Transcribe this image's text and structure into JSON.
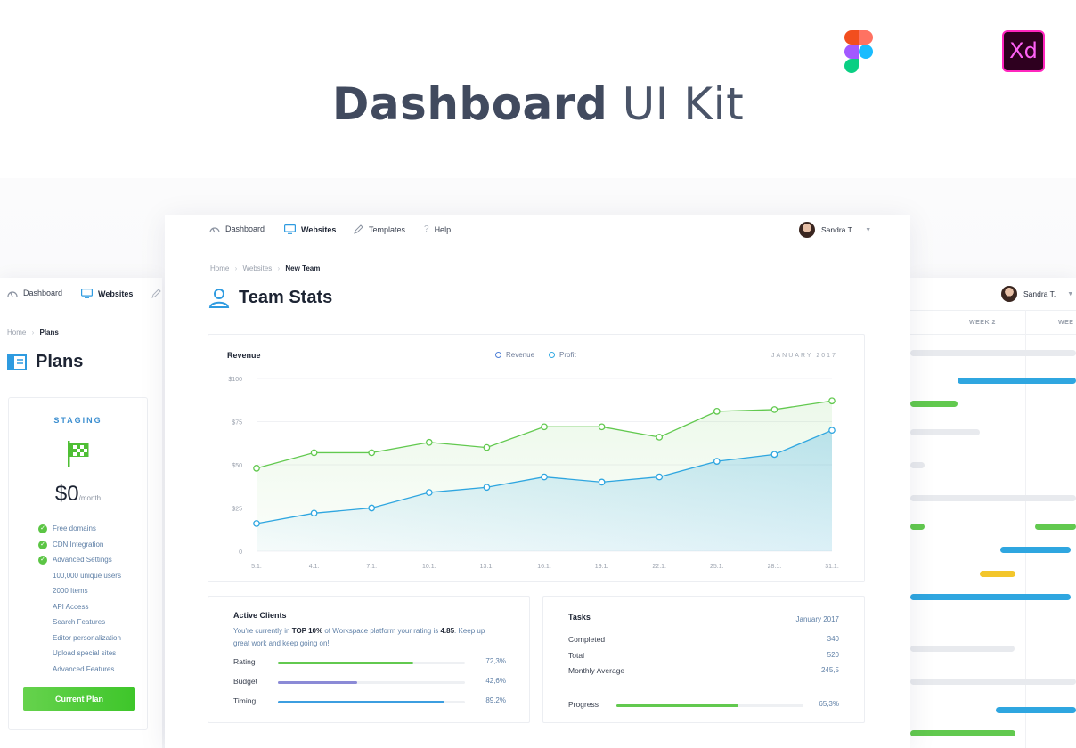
{
  "hero": {
    "title_bold": "Dashboard",
    "title_light": "UI Kit",
    "xd_label": "Xd"
  },
  "colors": {
    "accent_blue": "#2f9be0",
    "revenue_green": "#62c94f",
    "profit_blue": "#2fa6e0",
    "budget_purple": "#8b8ad6",
    "timing_blue": "#3c9ee0",
    "gantt_yellow": "#f3c62b"
  },
  "icons": {
    "dashboard": "gauge-icon",
    "websites": "monitor-icon",
    "templates": "pencil-icon",
    "help": "question-icon",
    "team": "user-icon",
    "plans": "columns-icon",
    "staging": "flag-icon",
    "check": "check-icon"
  },
  "main": {
    "nav": {
      "dashboard": "Dashboard",
      "websites": "Websites",
      "templates": "Templates",
      "help": "Help"
    },
    "user_name": "Sandra T.",
    "breadcrumb": {
      "home": "Home",
      "websites": "Websites",
      "current": "New Team"
    },
    "page_title": "Team Stats",
    "revenue_card": {
      "title": "Revenue",
      "legend_revenue": "Revenue",
      "legend_profit": "Profit",
      "date": "JANUARY 2017"
    },
    "clients_card": {
      "title": "Active Clients",
      "desc_pre": "You're currently in ",
      "desc_top": "TOP 10%",
      "desc_mid": " of Workspace platform your rating is ",
      "desc_rating": "4.85",
      "desc_post": ". Keep up great work and keep going on!",
      "meters": [
        {
          "label": "Rating",
          "value": "72,3%",
          "fraction": 0.723,
          "color": "#62c94f"
        },
        {
          "label": "Budget",
          "value": "42,6%",
          "fraction": 0.426,
          "color": "#8b8ad6"
        },
        {
          "label": "Timing",
          "value": "89,2%",
          "fraction": 0.892,
          "color": "#3c9ee0"
        }
      ]
    },
    "tasks_card": {
      "title": "Tasks",
      "date": "January 2017",
      "rows": [
        {
          "label": "Completed",
          "value": "340"
        },
        {
          "label": "Total",
          "value": "520"
        },
        {
          "label": "Monthly Average",
          "value": "245,5"
        }
      ],
      "progress_label": "Progress",
      "progress_value": "65,3%",
      "progress_fraction": 0.653
    }
  },
  "left": {
    "nav": {
      "dashboard": "Dashboard",
      "websites": "Websites"
    },
    "breadcrumb": {
      "home": "Home",
      "current": "Plans"
    },
    "page_title": "Plans",
    "plan": {
      "name": "STAGING",
      "price": "$0",
      "period": "/month",
      "features": [
        {
          "text": "Free domains",
          "checked": true
        },
        {
          "text": "CDN Integration",
          "checked": true
        },
        {
          "text": "Advanced Settings",
          "checked": true
        },
        {
          "text": "100,000 unique users",
          "checked": false
        },
        {
          "text": "2000 Items",
          "checked": false
        },
        {
          "text": "API Access",
          "checked": false
        },
        {
          "text": "Search Features",
          "checked": false
        },
        {
          "text": "Editor personalization",
          "checked": false
        },
        {
          "text": "Upload special sites",
          "checked": false
        },
        {
          "text": "Advanced Features",
          "checked": false
        }
      ],
      "button": "Current Plan"
    }
  },
  "right": {
    "user_name": "Sandra T.",
    "week2": "WEEK 2",
    "week3": "WEE"
  },
  "chart_data": {
    "type": "line",
    "title": "Revenue",
    "x": [
      "5.1.",
      "4.1.",
      "7.1.",
      "10.1.",
      "13.1.",
      "16.1.",
      "19.1.",
      "22.1.",
      "25.1.",
      "28.1.",
      "31.1."
    ],
    "series": [
      {
        "name": "Revenue",
        "values": [
          48,
          57,
          57,
          63,
          60,
          72,
          72,
          66,
          81,
          82,
          87
        ]
      },
      {
        "name": "Profit",
        "values": [
          16,
          22,
          25,
          34,
          37,
          43,
          40,
          43,
          52,
          56,
          70
        ]
      }
    ],
    "yticks": [
      "$100",
      "$75",
      "$50",
      "$25",
      "0"
    ],
    "ylim": [
      0,
      100
    ],
    "grid": true,
    "legend": "top-center",
    "fill": "area-gradient"
  }
}
